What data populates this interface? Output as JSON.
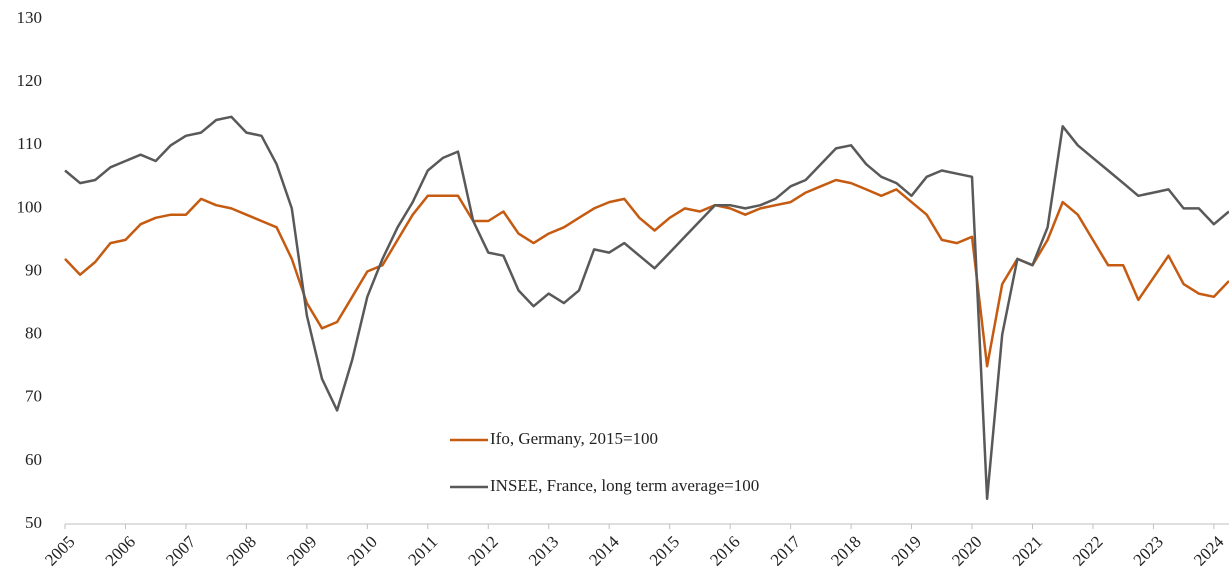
{
  "chart_data": {
    "type": "line",
    "categories": [
      "2005",
      null,
      null,
      null,
      "2006",
      null,
      null,
      null,
      "2007",
      null,
      null,
      null,
      "2008",
      null,
      null,
      null,
      "2009",
      null,
      null,
      null,
      "2010",
      null,
      null,
      null,
      "2011",
      null,
      null,
      null,
      "2012",
      null,
      null,
      null,
      "2013",
      null,
      null,
      null,
      "2014",
      null,
      null,
      null,
      "2015",
      null,
      null,
      null,
      "2016",
      null,
      null,
      null,
      "2017",
      null,
      null,
      null,
      "2018",
      null,
      null,
      null,
      "2019",
      null,
      null,
      null,
      "2020",
      null,
      null,
      null,
      "2021",
      null,
      null,
      null,
      "2022",
      null,
      null,
      null,
      "2023",
      null,
      null,
      null,
      "2024",
      null
    ],
    "series": [
      {
        "name": "Ifo, Germany, 2015=100",
        "color": "#c55a11",
        "values": [
          92,
          89.5,
          91.5,
          94.5,
          95,
          97.5,
          98.5,
          99,
          99,
          101.5,
          100.5,
          100,
          99,
          98,
          97,
          92,
          85,
          81,
          82,
          86,
          90,
          91,
          95,
          99,
          102,
          102,
          102,
          98,
          98,
          99.5,
          96,
          94.5,
          96,
          97,
          98.5,
          100,
          101,
          101.5,
          98.5,
          96.5,
          98.5,
          100,
          99.5,
          100.5,
          100,
          99,
          100,
          100.5,
          101,
          102.5,
          103.5,
          104.5,
          104,
          103,
          102,
          103,
          101,
          99,
          95,
          94.5,
          95.5,
          75,
          88,
          92,
          91,
          95,
          101,
          99,
          95,
          91,
          91,
          85.5,
          89,
          92.5,
          88,
          86.5,
          86,
          88.5
        ]
      },
      {
        "name": "INSEE, France, long term average=100",
        "color": "#595959",
        "values": [
          106,
          104,
          104.5,
          106.5,
          107.5,
          108.5,
          107.5,
          110,
          111.5,
          112,
          114,
          114.5,
          112,
          111.5,
          107,
          100,
          83,
          73,
          68,
          76,
          86,
          92,
          97,
          101,
          106,
          108,
          109,
          98,
          93,
          92.5,
          87,
          84.5,
          86.5,
          85,
          87,
          93.5,
          93,
          94.5,
          92.5,
          90.5,
          93,
          95.5,
          98,
          100.5,
          100.5,
          100,
          100.5,
          101.5,
          103.5,
          104.5,
          107,
          109.5,
          110,
          107,
          105,
          104,
          102,
          105,
          106,
          105.5,
          105,
          54,
          80,
          92,
          91,
          97,
          113,
          110,
          108,
          106,
          104,
          102,
          102.5,
          103,
          100,
          100,
          97.5,
          99.5
        ]
      }
    ],
    "ylim": [
      50,
      130
    ],
    "yticks": [
      50,
      60,
      70,
      80,
      90,
      100,
      110,
      120,
      130
    ],
    "grid": false,
    "legend": "bottom-center"
  }
}
